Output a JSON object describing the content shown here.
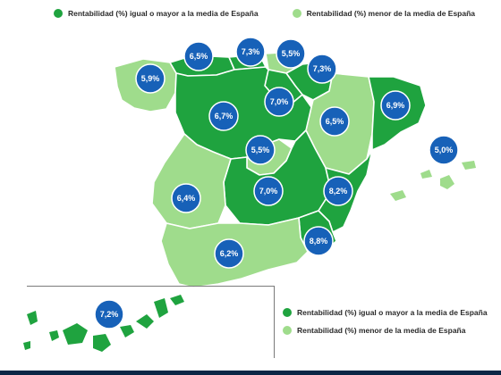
{
  "legend": {
    "above": {
      "label": "Rentabilidad (%) igual o mayor a la media de España",
      "color": "#1fa33f"
    },
    "below": {
      "label": "Rentabilidad (%) menor de la media de España",
      "color": "#9fdc8c"
    }
  },
  "colors": {
    "badge": "#1761b8",
    "badge_border": "#ffffff",
    "region_border": "#ffffff"
  },
  "regions": [
    {
      "id": "galicia",
      "value": "5,9%",
      "category": "below"
    },
    {
      "id": "asturias",
      "value": "6,5%",
      "category": "above"
    },
    {
      "id": "cantabria",
      "value": "7,3%",
      "category": "above"
    },
    {
      "id": "pais-vasco",
      "value": "5,5%",
      "category": "below"
    },
    {
      "id": "navarra",
      "value": "7,3%",
      "category": "above"
    },
    {
      "id": "la-rioja",
      "value": "7,0%",
      "category": "above"
    },
    {
      "id": "aragon",
      "value": "6,5%",
      "category": "below"
    },
    {
      "id": "cataluna",
      "value": "6,9%",
      "category": "above"
    },
    {
      "id": "castilla-y-leon",
      "value": "6,7%",
      "category": "above"
    },
    {
      "id": "madrid",
      "value": "5,5%",
      "category": "below"
    },
    {
      "id": "castilla-la-mancha",
      "value": "7,0%",
      "category": "above"
    },
    {
      "id": "comunidad-valenciana",
      "value": "8,2%",
      "category": "above"
    },
    {
      "id": "extremadura",
      "value": "6,4%",
      "category": "below"
    },
    {
      "id": "murcia",
      "value": "8,8%",
      "category": "above"
    },
    {
      "id": "andalucia",
      "value": "6,2%",
      "category": "below"
    },
    {
      "id": "baleares",
      "value": "5,0%",
      "category": "below"
    },
    {
      "id": "canarias",
      "value": "7,2%",
      "category": "above"
    }
  ]
}
